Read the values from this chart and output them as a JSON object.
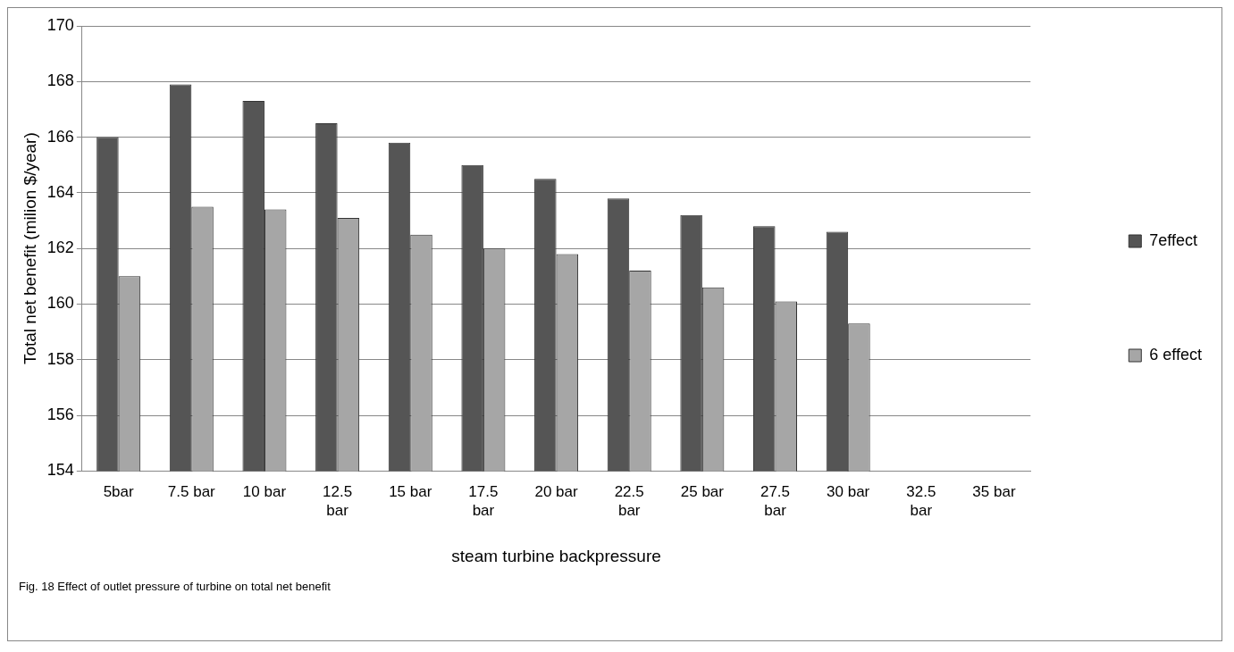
{
  "chart_data": {
    "type": "bar",
    "xlabel": "steam turbine backpressure",
    "ylabel": "Total net benefit (milion $/year)",
    "categories": [
      "5bar",
      "7.5 bar",
      "10 bar",
      "12.5 bar",
      "15 bar",
      "17.5 bar",
      "20 bar",
      "22.5 bar",
      "25 bar",
      "27.5 bar",
      "30 bar",
      "32.5 bar",
      "35 bar"
    ],
    "series": [
      {
        "name": "7effect",
        "color": "#555555",
        "values": [
          166.0,
          167.9,
          167.3,
          166.5,
          165.8,
          165.0,
          164.5,
          163.8,
          163.2,
          162.8,
          162.6,
          null,
          null
        ]
      },
      {
        "name": "6 effect",
        "color": "#a6a6a6",
        "values": [
          161.0,
          163.5,
          163.4,
          163.1,
          162.5,
          162.0,
          161.8,
          161.2,
          160.6,
          160.1,
          159.3,
          null,
          null
        ]
      }
    ],
    "ylim": [
      154,
      170
    ],
    "yticks": [
      154,
      156,
      158,
      160,
      162,
      164,
      166,
      168,
      170
    ],
    "grid": "y",
    "legend": "right",
    "annotations": [
      "Fig. 18 Effect of outlet pressure of turbine on total net benefit"
    ]
  }
}
